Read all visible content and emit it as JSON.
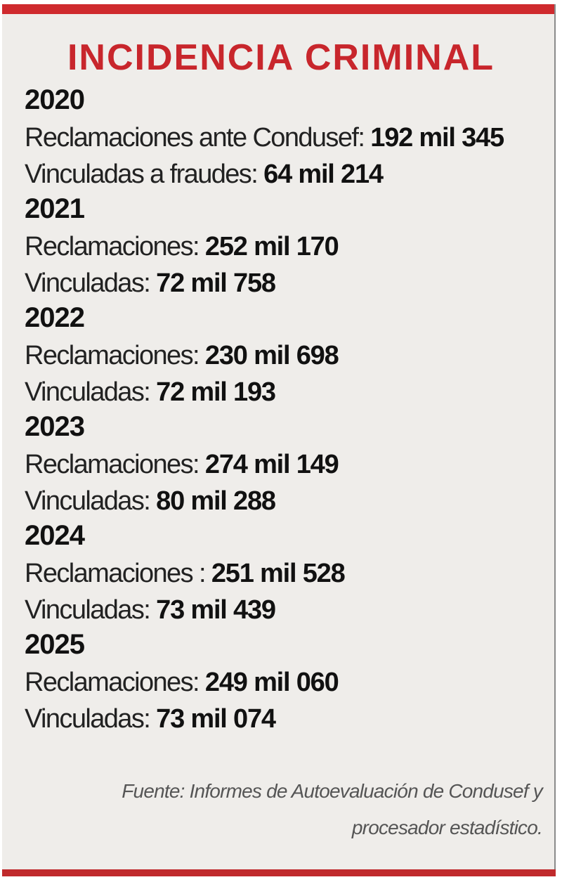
{
  "title": "INCIDENCIA CRIMINAL",
  "colors": {
    "accent": "#cf2a2e",
    "background": "#efedea"
  },
  "years": [
    {
      "year": "2020",
      "line1_label": "Reclamaciones ante Condusef:",
      "line1_value": "192 mil 345",
      "line2_label": "Vinculadas a fraudes:",
      "line2_value": "64 mil 214"
    },
    {
      "year": "2021",
      "line1_label": "Reclamaciones:",
      "line1_value": "252 mil 170",
      "line2_label": "Vinculadas:",
      "line2_value": "72 mil 758"
    },
    {
      "year": "2022",
      "line1_label": "Reclamaciones:",
      "line1_value": "230 mil 698",
      "line2_label": "Vinculadas:",
      "line2_value": "72 mil 193"
    },
    {
      "year": "2023",
      "line1_label": "Reclamaciones:",
      "line1_value": "274 mil 149",
      "line2_label": "Vinculadas:",
      "line2_value": "80 mil 288"
    },
    {
      "year": "2024",
      "line1_label": "Reclamaciones :",
      "line1_value": "251 mil 528",
      "line2_label": "Vinculadas:",
      "line2_value": "73 mil 439"
    },
    {
      "year": "2025",
      "line1_label": "Reclamaciones:",
      "line1_value": "249 mil 060",
      "line2_label": "Vinculadas:",
      "line2_value": "73 mil 074"
    }
  ],
  "source_line1": "Fuente: Informes de Autoevaluación de Condusef y",
  "source_line2": "procesador estadístico."
}
